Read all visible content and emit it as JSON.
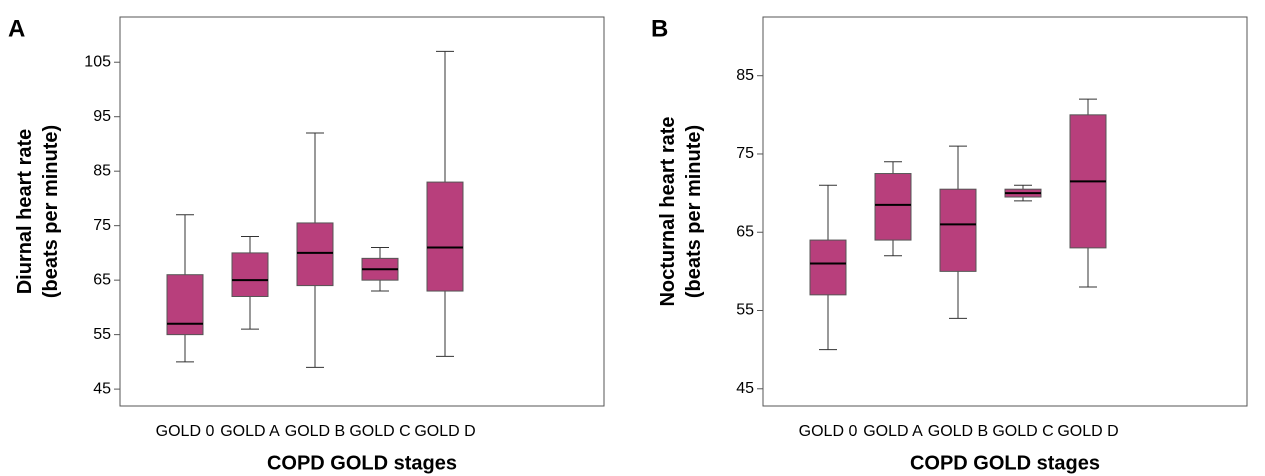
{
  "chart_data": [
    {
      "type": "box",
      "panel": "A",
      "y_label": [
        "Diurnal heart rate",
        "(beats per minute)"
      ],
      "x_label": "COPD GOLD stages",
      "categories": [
        "GOLD 0",
        "GOLD A",
        "GOLD B",
        "GOLD C",
        "GOLD D"
      ],
      "whisker_low": [
        50,
        56,
        49,
        63,
        51
      ],
      "q1": [
        55,
        62,
        64,
        65,
        63
      ],
      "median": [
        57,
        65,
        70,
        67,
        71
      ],
      "q3": [
        66,
        70,
        75.5,
        69,
        83
      ],
      "whisker_high": [
        77,
        73,
        92,
        71,
        107
      ],
      "color": "#b83f7c",
      "ylim": [
        41.9,
        113.3
      ],
      "yticks": [
        45,
        55,
        65,
        75,
        85,
        95,
        105
      ]
    },
    {
      "type": "box",
      "panel": "B",
      "y_label": [
        "Nocturnal heart rate",
        "(beats per minute)"
      ],
      "x_label": "COPD GOLD stages",
      "categories": [
        "GOLD 0",
        "GOLD A",
        "GOLD B",
        "GOLD C",
        "GOLD D"
      ],
      "whisker_low": [
        50,
        62,
        54,
        69,
        58
      ],
      "q1": [
        57,
        64,
        60,
        69.5,
        63
      ],
      "median": [
        61,
        68.5,
        66,
        70,
        71.5
      ],
      "q3": [
        64,
        72.5,
        70.5,
        70.5,
        80
      ],
      "whisker_high": [
        71,
        74,
        76,
        71,
        82
      ],
      "color": "#b83f7c",
      "ylim": [
        42.8,
        92.5
      ],
      "yticks": [
        45,
        55,
        65,
        75,
        85
      ]
    }
  ]
}
